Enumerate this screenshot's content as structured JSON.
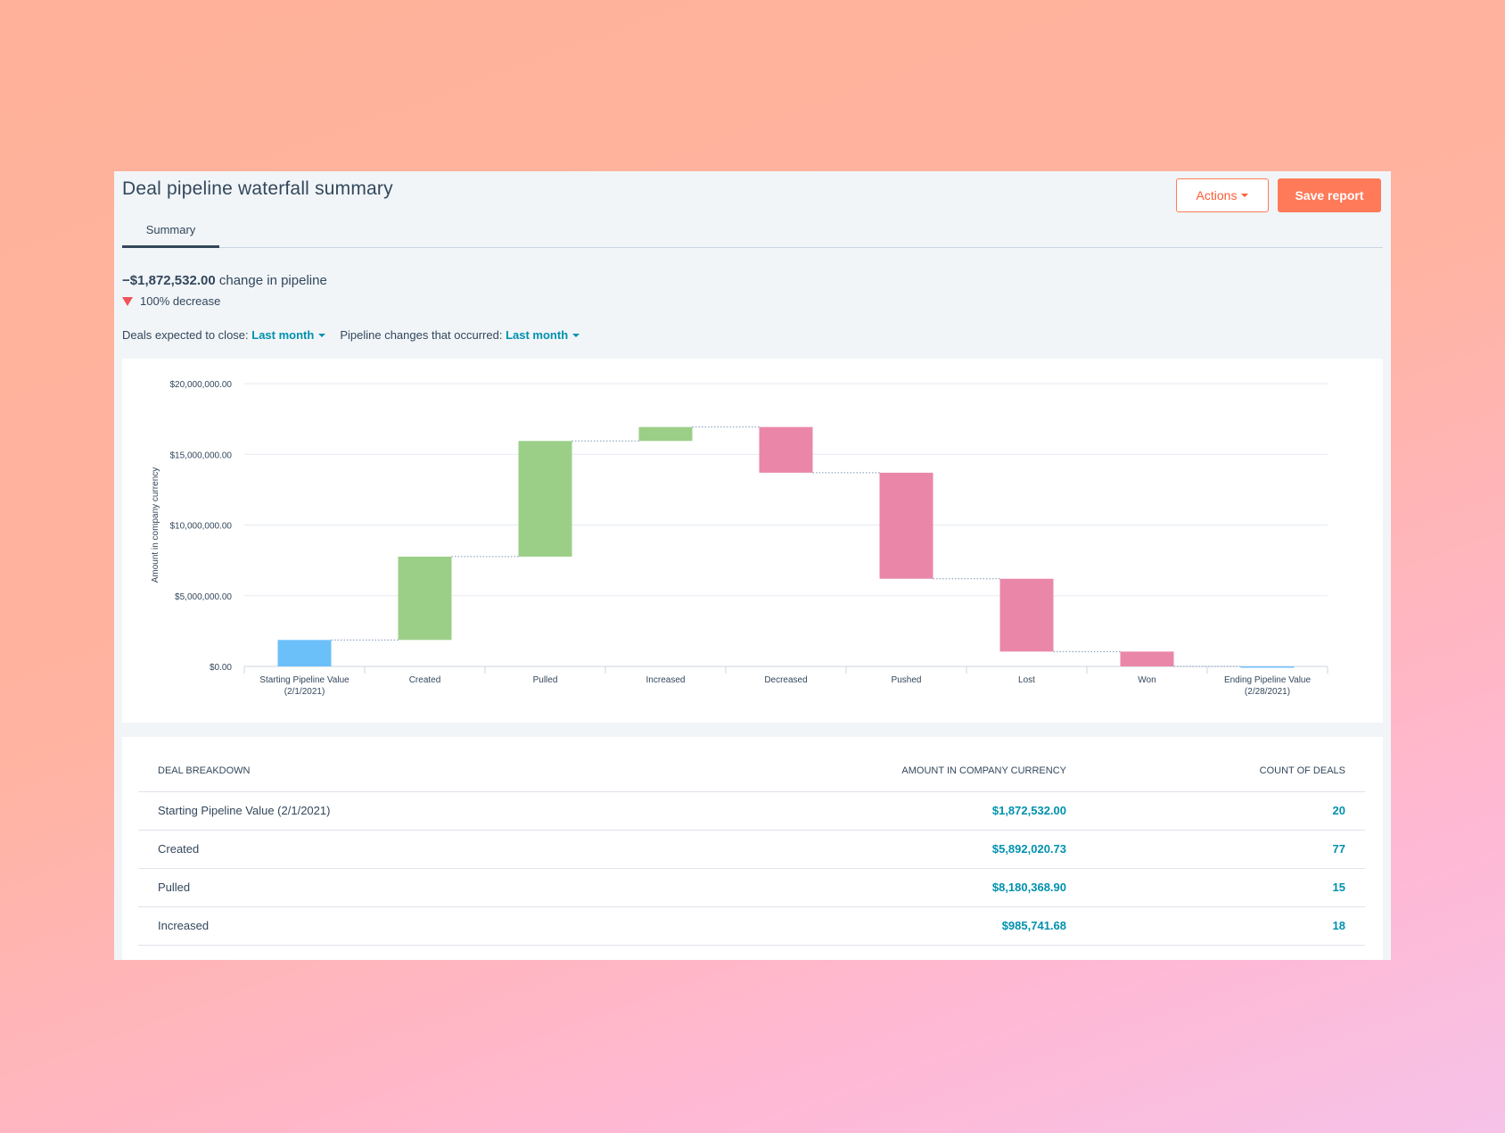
{
  "header": {
    "title": "Deal pipeline waterfall summary",
    "actions_label": "Actions",
    "save_label": "Save report"
  },
  "tabs": [
    {
      "label": "Summary",
      "active": true
    }
  ],
  "summary": {
    "change_value": "−$1,872,532.00",
    "change_text": "change in pipeline",
    "decrease_text": "100% decrease"
  },
  "filters": {
    "close_label": "Deals expected to close:",
    "close_value": "Last month",
    "changes_label": "Pipeline changes that occurred:",
    "changes_value": "Last month"
  },
  "colors": {
    "start": "#6cc0fa",
    "increase": "#9bcf87",
    "decrease": "#ea87a9",
    "accent": "#ff7a59",
    "link": "#0091ae"
  },
  "chart_data": {
    "type": "bar",
    "subtype": "waterfall",
    "ylabel": "Amount in company currency",
    "ylim": [
      0,
      20000000
    ],
    "y_ticks": [
      "$0.00",
      "$5,000,000.00",
      "$10,000,000.00",
      "$15,000,000.00",
      "$20,000,000.00"
    ],
    "categories": [
      "Starting Pipeline Value (2/1/2021)",
      "Created",
      "Pulled",
      "Increased",
      "Decreased",
      "Pushed",
      "Lost",
      "Won",
      "Ending Pipeline Value (2/28/2021)"
    ],
    "category_lines": [
      [
        "Starting Pipeline Value",
        "(2/1/2021)"
      ],
      [
        "Created"
      ],
      [
        "Pulled"
      ],
      [
        "Increased"
      ],
      [
        "Decreased"
      ],
      [
        "Pushed"
      ],
      [
        "Lost"
      ],
      [
        "Won"
      ],
      [
        "Ending Pipeline Value",
        "(2/28/2021)"
      ]
    ],
    "bars": [
      {
        "kind": "start",
        "from": 0,
        "to": 1872532
      },
      {
        "kind": "increase",
        "from": 1872532,
        "to": 7764553
      },
      {
        "kind": "increase",
        "from": 7764553,
        "to": 15944922
      },
      {
        "kind": "increase",
        "from": 15944922,
        "to": 16930663
      },
      {
        "kind": "decrease",
        "from": 16930663,
        "to": 13700000
      },
      {
        "kind": "decrease",
        "from": 13700000,
        "to": 6200000
      },
      {
        "kind": "decrease",
        "from": 6200000,
        "to": 1050000
      },
      {
        "kind": "decrease",
        "from": 1050000,
        "to": 0
      },
      {
        "kind": "start",
        "from": 0,
        "to": 0
      }
    ],
    "grid": true,
    "legend": "none"
  },
  "table": {
    "headers": [
      "DEAL BREAKDOWN",
      "AMOUNT IN COMPANY CURRENCY",
      "COUNT OF DEALS"
    ],
    "rows": [
      {
        "label": "Starting Pipeline Value (2/1/2021)",
        "amount": "$1,872,532.00",
        "count": "20"
      },
      {
        "label": "Created",
        "amount": "$5,892,020.73",
        "count": "77"
      },
      {
        "label": "Pulled",
        "amount": "$8,180,368.90",
        "count": "15"
      },
      {
        "label": "Increased",
        "amount": "$985,741.68",
        "count": "18"
      }
    ]
  }
}
